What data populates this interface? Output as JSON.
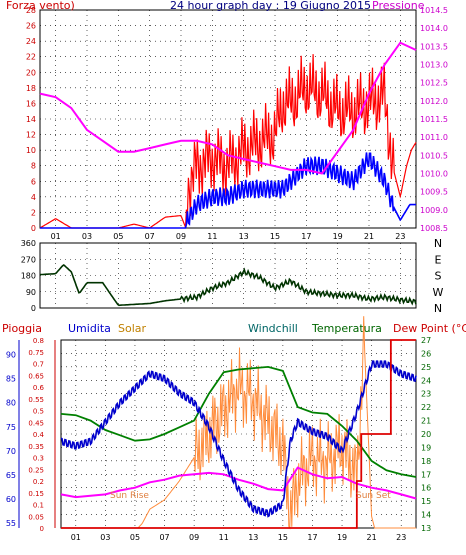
{
  "header": {
    "left_label": "Forza vento)",
    "title": "24 hour graph day : 19 Giugno 2015",
    "right_label": "Pressione"
  },
  "labels2": {
    "pioggia": "Pioggia",
    "umidita": "Umidita",
    "solar": "Solar",
    "windchill": "Windchill",
    "temperatura": "Temperatura",
    "dewpoint": "Dew Point (°C)",
    "sunrise": "Sun Rise",
    "sunset": "Sun Set"
  },
  "colors": {
    "wind": "#ff0000",
    "gust": "#ff0000",
    "avgwind": "#0000ff",
    "pressure": "#ff00ff",
    "direction": "#003300",
    "pioggia": "#cc0000",
    "umidita": "#0000cc",
    "solar": "#ff8c3c",
    "windchill": "#006600",
    "temperatura": "#008000",
    "dewpoint": "#ff00ff",
    "rain": "#dd0000",
    "frame": "#000000",
    "grid": "#000000"
  },
  "chart_data": [
    {
      "type": "line",
      "x_label_hours": [
        "01",
        "03",
        "05",
        "07",
        "09",
        "11",
        "13",
        "15",
        "17",
        "19",
        "21",
        "23"
      ],
      "y_left_ticks": [
        0,
        2,
        4,
        6,
        8,
        10,
        12,
        14,
        16,
        18,
        20,
        22,
        24,
        26,
        28
      ],
      "y_right_ticks": [
        1008.5,
        1009,
        1009.5,
        1010,
        1010.5,
        1011,
        1011.5,
        1012,
        1012.5,
        1013,
        1013.5,
        1014,
        1014.5
      ],
      "ylim_left": [
        0,
        28
      ],
      "ylim_right": [
        1008.5,
        1014.5
      ],
      "xlim": [
        0,
        24
      ],
      "grid": true,
      "series": [
        {
          "role": "pressure",
          "x": [
            0,
            1,
            2,
            3,
            4,
            5,
            6,
            7,
            8,
            9,
            10,
            11,
            12,
            13,
            14,
            15,
            16,
            17,
            18,
            19,
            20,
            21,
            22,
            23,
            24
          ],
          "y": [
            1012.2,
            1012.1,
            1011.8,
            1011.2,
            1010.9,
            1010.6,
            1010.6,
            1010.7,
            1010.8,
            1010.9,
            1010.9,
            1010.8,
            1010.5,
            1010.4,
            1010.3,
            1010.2,
            1010.1,
            1010.1,
            1010.0,
            1010.6,
            1011.2,
            1012.2,
            1013.0,
            1013.6,
            1013.4
          ]
        },
        {
          "role": "avgwind",
          "x": [
            0,
            9.3,
            9.4,
            10,
            11,
            12,
            13,
            14,
            15,
            15.5,
            16,
            17,
            18,
            19,
            20,
            21,
            22,
            22.5,
            23,
            23.3,
            23.6,
            24
          ],
          "y": [
            0,
            0,
            1,
            3,
            4,
            4,
            5,
            5,
            5,
            5,
            6,
            8,
            8,
            7,
            6,
            9,
            6,
            3,
            1,
            2,
            3,
            3
          ]
        },
        {
          "role": "gust",
          "x": [
            0,
            1,
            2,
            3,
            4,
            5,
            6,
            7,
            8,
            9,
            9.3,
            9.4,
            10,
            11,
            12,
            13,
            14,
            15,
            15.5,
            16,
            17,
            18,
            19,
            20,
            21,
            22,
            22.5,
            23,
            23.4,
            23.7,
            24
          ],
          "y": [
            0,
            1.2,
            0,
            0,
            0,
            0,
            0.5,
            0,
            1.4,
            1.6,
            0,
            5,
            8,
            9,
            8,
            10,
            11,
            12,
            16,
            16,
            18,
            17,
            15,
            15,
            16,
            17,
            8,
            4,
            8,
            10,
            11
          ]
        }
      ]
    },
    {
      "type": "line",
      "direction_ticks": [
        0,
        90,
        180,
        270,
        360
      ],
      "direction_letters": [
        "N",
        "W",
        "S",
        "E",
        "N"
      ],
      "ylim": [
        0,
        360
      ],
      "xlim": [
        0,
        24
      ],
      "series": [
        {
          "role": "direction",
          "x": [
            0,
            1,
            1.5,
            2,
            2.5,
            3,
            4,
            5,
            6,
            7,
            8,
            9,
            10,
            11,
            12,
            13,
            14,
            15,
            16,
            17,
            18,
            19,
            20,
            21,
            22,
            23,
            24
          ],
          "y": [
            185,
            190,
            240,
            200,
            80,
            140,
            140,
            15,
            20,
            25,
            40,
            50,
            60,
            110,
            140,
            200,
            170,
            110,
            150,
            90,
            80,
            70,
            70,
            50,
            60,
            45,
            35
          ]
        }
      ]
    },
    {
      "type": "line",
      "y_umidita_ticks": [
        55,
        60,
        65,
        70,
        75,
        80,
        85,
        90
      ],
      "y_rain_ticks": [
        0,
        0.05,
        0.1,
        0.15,
        0.2,
        0.25,
        0.3,
        0.35,
        0.4,
        0.45,
        0.5,
        0.55,
        0.6,
        0.65,
        0.7,
        0.75,
        0.8
      ],
      "y_temp_ticks": [
        13,
        14,
        15,
        16,
        17,
        18,
        19,
        20,
        21,
        22,
        23,
        24,
        25,
        26,
        27
      ],
      "ylim_umidita": [
        54,
        93
      ],
      "ylim_rain": [
        0,
        0.8
      ],
      "ylim_temp": [
        13,
        27
      ],
      "xlim": [
        0,
        24
      ],
      "grid": true,
      "series": [
        {
          "role": "umidita",
          "x": [
            0,
            1,
            2,
            3,
            4,
            5,
            6,
            7,
            8,
            9,
            10,
            11,
            12,
            13,
            14,
            15,
            15.5,
            16,
            17,
            18,
            19,
            20,
            21,
            22,
            23,
            24
          ],
          "y": [
            72,
            71,
            72,
            76,
            80,
            83,
            86,
            85,
            82,
            80,
            75,
            68,
            62,
            58,
            57,
            59,
            72,
            76,
            74,
            73,
            70,
            78,
            88,
            88,
            86,
            85
          ]
        },
        {
          "role": "temperatura",
          "x": [
            0,
            1,
            2,
            3,
            4,
            5,
            6,
            7,
            8,
            9,
            10,
            11,
            12,
            13,
            14,
            15,
            16,
            17,
            18,
            19,
            20,
            21,
            22,
            23,
            24
          ],
          "y": [
            21.5,
            21.4,
            21,
            20.3,
            19.9,
            19.5,
            19.6,
            20,
            20.5,
            21,
            23,
            24.6,
            24.8,
            24.9,
            25,
            24.7,
            22,
            21.6,
            21.5,
            20.6,
            19.5,
            18,
            17.3,
            17,
            16.8
          ]
        },
        {
          "role": "dewpoint",
          "x": [
            0,
            1,
            2,
            3,
            4,
            5,
            6,
            7,
            8,
            9,
            10,
            11,
            12,
            13,
            14,
            15,
            16,
            17,
            18,
            19,
            20,
            21,
            22,
            23,
            24
          ],
          "y": [
            15.5,
            15.3,
            15.4,
            15.5,
            15.8,
            16,
            16.4,
            16.6,
            16.9,
            17.0,
            17.1,
            17.0,
            16.6,
            16.3,
            15.9,
            15.8,
            17.5,
            17.0,
            16.7,
            16.8,
            16.3,
            16.0,
            15.8,
            15.5,
            15.2
          ]
        },
        {
          "role": "solar",
          "x": [
            0,
            5.2,
            5.5,
            6,
            7,
            8,
            9,
            10,
            11,
            12,
            13,
            14,
            15,
            15.5,
            16,
            17,
            18,
            19,
            20,
            20.5,
            21,
            21.2,
            24
          ],
          "y": [
            0,
            0,
            0.02,
            0.08,
            0.12,
            0.2,
            0.3,
            0.4,
            0.5,
            0.6,
            0.55,
            0.45,
            0.35,
            0.05,
            0.2,
            0.3,
            0.28,
            0.35,
            0.22,
            0.8,
            0.05,
            0,
            0
          ]
        },
        {
          "role": "rain",
          "x": [
            0,
            19.5,
            20.0,
            20.3,
            21.0,
            22.0,
            22.3,
            23,
            24
          ],
          "y": [
            0,
            0,
            0.2,
            0.4,
            0.4,
            0.4,
            0.8,
            0.8,
            0.8
          ]
        }
      ]
    }
  ]
}
